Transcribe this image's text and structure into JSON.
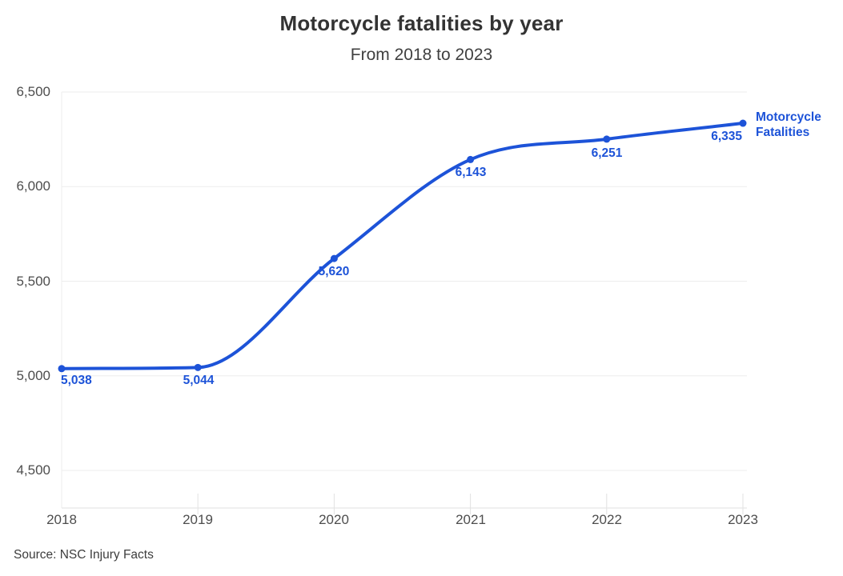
{
  "header": {
    "title": "Motorcycle fatalities by year",
    "subtitle": "From 2018 to 2023"
  },
  "footer": {
    "source": "Source: NSC Injury Facts"
  },
  "chart_data": {
    "type": "line",
    "title": "Motorcycle fatalities by year",
    "subtitle": "From 2018 to 2023",
    "categories": [
      "2018",
      "2019",
      "2020",
      "2021",
      "2022",
      "2023"
    ],
    "series": [
      {
        "name": "Motorcycle Fatalities",
        "values": [
          5038,
          5044,
          5620,
          6143,
          6251,
          6335
        ]
      }
    ],
    "value_labels": [
      "5,038",
      "5,044",
      "5,620",
      "6,143",
      "6,251",
      "6,335"
    ],
    "y_ticks": [
      6500,
      6000,
      5500,
      5000,
      4500
    ],
    "y_tick_labels": [
      "6,500",
      "6,000",
      "5,500",
      "5,000",
      "4,500"
    ],
    "ylim": [
      4300,
      6500
    ],
    "grid": "horizontal",
    "curve": "smooth-monotone",
    "legend_position": "line-end-label",
    "line_color": "#1d53d8",
    "label_color": "#1d53d8",
    "grid_color": "#ededed",
    "axis_color": "#e2e2e2",
    "source": "Source: NSC Injury Facts"
  }
}
